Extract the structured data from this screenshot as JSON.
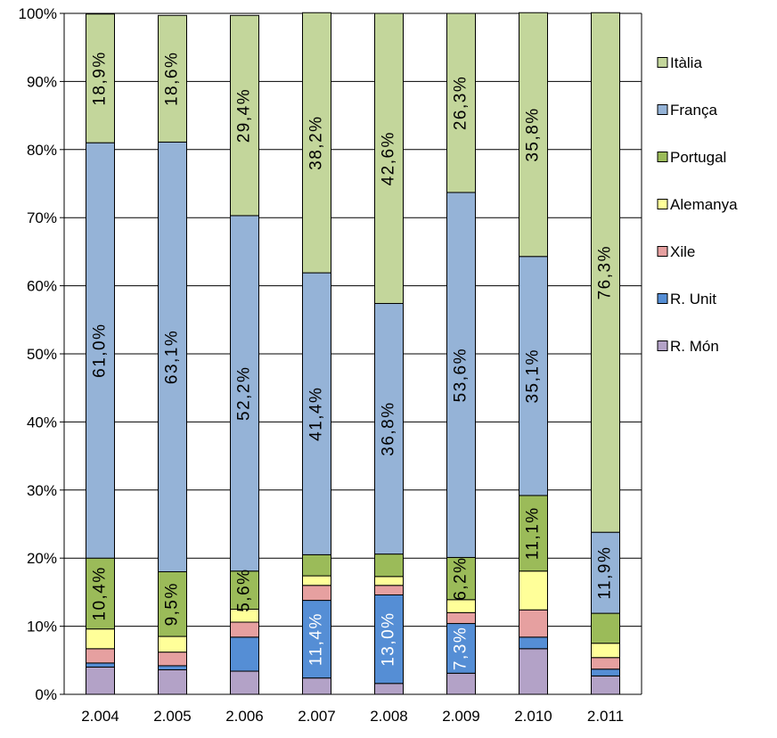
{
  "chart_data": {
    "type": "bar",
    "stacked": true,
    "percent": true,
    "categories": [
      "2.004",
      "2.005",
      "2.006",
      "2.007",
      "2.008",
      "2.009",
      "2.010",
      "2.011"
    ],
    "y_ticks": [
      "0%",
      "10%",
      "20%",
      "30%",
      "40%",
      "50%",
      "60%",
      "70%",
      "80%",
      "90%",
      "100%"
    ],
    "ylim": [
      0,
      100
    ],
    "grid": true,
    "legend_position": "right",
    "series": [
      {
        "name": "R. Món",
        "color": "#b3a2c7",
        "values": [
          4.0,
          3.6,
          3.4,
          2.4,
          1.6,
          3.1,
          6.7,
          2.7
        ],
        "labels": [
          "",
          "",
          "",
          "",
          "",
          "",
          "",
          ""
        ]
      },
      {
        "name": "R. Unit",
        "color": "#558ed5",
        "values": [
          0.6,
          0.6,
          5.0,
          11.4,
          13.0,
          7.3,
          1.7,
          1.0
        ],
        "labels": [
          "",
          "",
          "",
          "11,4%",
          "13,0%",
          "7,3%",
          "",
          ""
        ]
      },
      {
        "name": "Xile",
        "color": "#e6a0a0",
        "values": [
          2.1,
          2.0,
          2.2,
          2.2,
          1.4,
          1.6,
          4.0,
          1.7
        ],
        "labels": [
          "",
          "",
          "",
          "",
          "",
          "",
          "",
          ""
        ]
      },
      {
        "name": "Alemanya",
        "color": "#ffff99",
        "values": [
          2.9,
          2.3,
          1.9,
          1.4,
          1.3,
          1.9,
          5.7,
          2.1
        ],
        "labels": [
          "",
          "",
          "",
          "",
          "",
          "",
          "",
          ""
        ]
      },
      {
        "name": "Portugal",
        "color": "#9bbb59",
        "values": [
          10.4,
          9.5,
          5.6,
          3.1,
          3.3,
          6.2,
          11.1,
          4.4
        ],
        "labels": [
          "10,4%",
          "9,5%",
          "5,6%",
          "",
          "",
          "6,2%",
          "11,1%",
          ""
        ]
      },
      {
        "name": "França",
        "color": "#95b3d7",
        "values": [
          61.0,
          63.1,
          52.2,
          41.4,
          36.8,
          53.6,
          35.1,
          11.9
        ],
        "labels": [
          "61,0%",
          "63,1%",
          "52,2%",
          "41,4%",
          "36,8%",
          "53,6%",
          "35,1%",
          "11,9%"
        ]
      },
      {
        "name": "Itàlia",
        "color": "#c3d69b",
        "values": [
          18.9,
          18.6,
          29.4,
          38.2,
          42.6,
          26.3,
          35.8,
          76.3
        ],
        "labels": [
          "18,9%",
          "18,6%",
          "29,4%",
          "38,2%",
          "42,6%",
          "26,3%",
          "35,8%",
          "76,3%"
        ]
      }
    ],
    "legend_order": [
      "Itàlia",
      "França",
      "Portugal",
      "Alemanya",
      "Xile",
      "R. Unit",
      "R. Món"
    ],
    "label_colors": {
      "R. Unit": "#ffffff"
    }
  }
}
